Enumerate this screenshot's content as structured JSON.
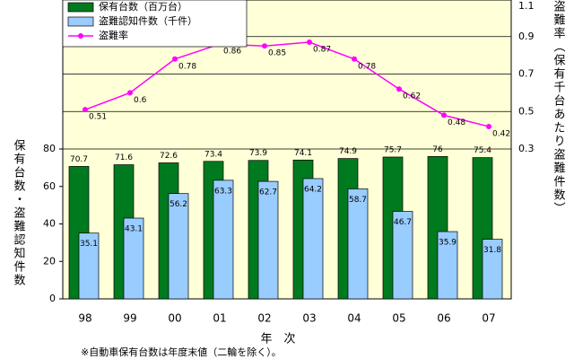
{
  "chart_data": {
    "type": "bar_line",
    "x_label": "年　次",
    "y_label": "保有台数・盗難認知件数",
    "y2_label": "盗難率（保有千台あたり盗難件数）",
    "note": "※自動車保有台数は年度末値（二輪を除く）。",
    "categories": [
      "98",
      "99",
      "00",
      "01",
      "02",
      "03",
      "04",
      "05",
      "06",
      "07"
    ],
    "series": [
      {
        "name": "保有台数（百万台）",
        "color": "#007a1e",
        "kind": "bar",
        "values": [
          70.7,
          71.6,
          72.6,
          73.4,
          73.9,
          74.1,
          74.9,
          75.7,
          76.0,
          75.4
        ]
      },
      {
        "name": "盗難認知件数（千件）",
        "color": "#99ccff",
        "kind": "bar",
        "values": [
          35.1,
          43.1,
          56.2,
          63.3,
          62.7,
          64.2,
          58.7,
          46.7,
          35.9,
          31.8
        ]
      },
      {
        "name": "盗難率",
        "color": "#ff00ff",
        "kind": "line",
        "axis": "y2",
        "values": [
          0.51,
          0.6,
          0.78,
          0.86,
          0.85,
          0.87,
          0.78,
          0.62,
          0.48,
          0.42
        ]
      }
    ],
    "ylim": [
      0,
      160
    ],
    "yticks": [
      0,
      20,
      40,
      60,
      80
    ],
    "y2lim": [
      -0.5,
      1.1
    ],
    "y2ticks": [
      0.3,
      0.5,
      0.7,
      0.9,
      1.1
    ],
    "grid": true
  }
}
